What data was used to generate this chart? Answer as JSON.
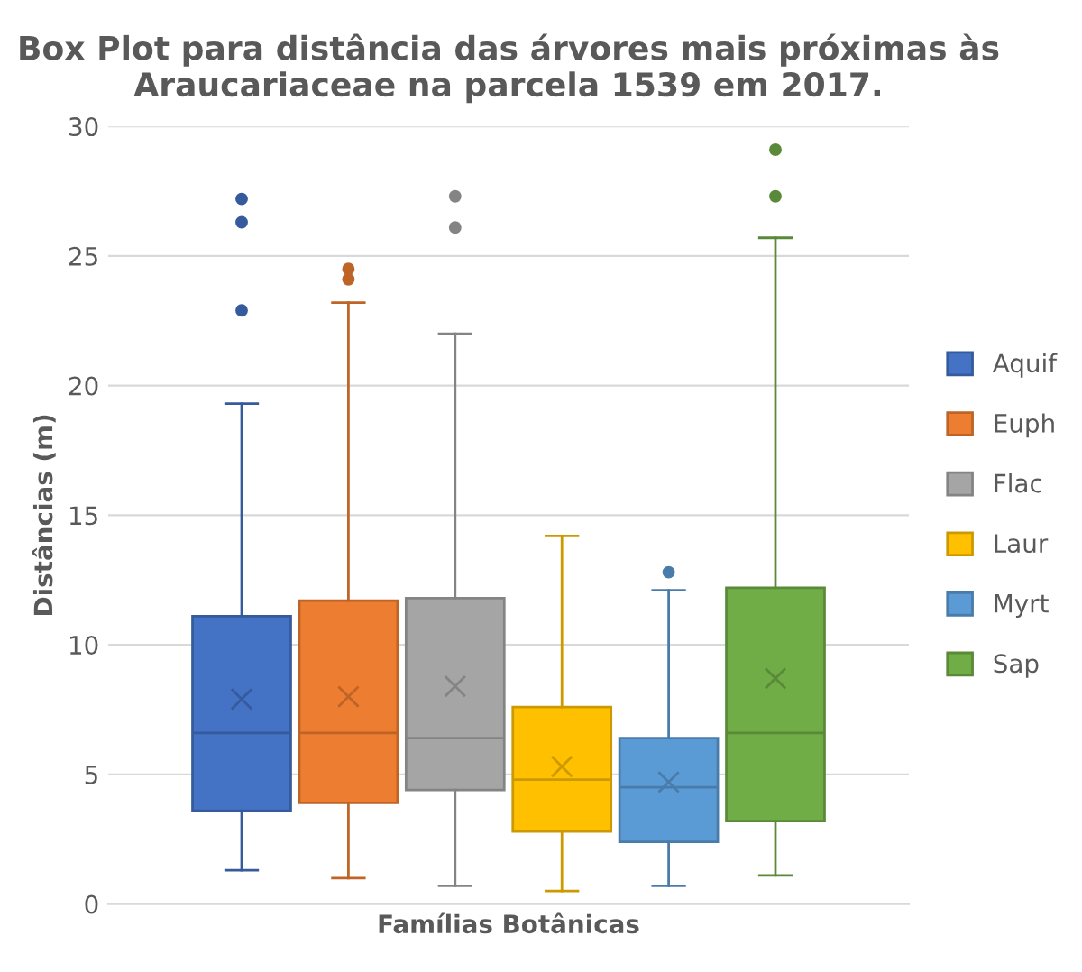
{
  "chart_data": {
    "type": "box",
    "title": "Box Plot para distância das árvores mais próximas às Araucariaceae na parcela 1539 em 2017.",
    "xlabel": "Famílias Botânicas",
    "ylabel": "Distâncias (m)",
    "categories": [
      null
    ],
    "ylim": [
      0,
      30
    ],
    "yticks": [
      0,
      5,
      10,
      15,
      20,
      25,
      30
    ],
    "grid": "y",
    "legend": "right",
    "tick_labels": "y",
    "series": [
      {
        "name": "Aquif",
        "color": "#4472c4",
        "boxes": [
          {
            "low": 1.3,
            "q1": 3.6,
            "median": 6.6,
            "q3": 11.1,
            "high": 19.3,
            "mean": 7.9,
            "outliers": [
              22.9,
              26.3,
              27.2
            ]
          }
        ]
      },
      {
        "name": "Euph",
        "color": "#ed7d31",
        "boxes": [
          {
            "low": 1.0,
            "q1": 3.9,
            "median": 6.6,
            "q3": 11.7,
            "high": 23.2,
            "mean": 8.0,
            "outliers": [
              24.1,
              24.5
            ]
          }
        ]
      },
      {
        "name": "Flac",
        "color": "#a5a5a5",
        "boxes": [
          {
            "low": 0.7,
            "q1": 4.4,
            "median": 6.4,
            "q3": 11.8,
            "high": 22.0,
            "mean": 8.4,
            "outliers": [
              26.1,
              27.3
            ]
          }
        ]
      },
      {
        "name": "Laur",
        "color": "#ffc000",
        "boxes": [
          {
            "low": 0.5,
            "q1": 2.8,
            "median": 4.8,
            "q3": 7.6,
            "high": 14.2,
            "mean": 5.3
          }
        ]
      },
      {
        "name": "Myrt",
        "color": "#5b9bd5",
        "boxes": [
          {
            "low": 0.7,
            "q1": 2.4,
            "median": 4.5,
            "q3": 6.4,
            "high": 12.1,
            "mean": 4.7,
            "outliers": [
              12.8
            ]
          }
        ]
      },
      {
        "name": "Sap",
        "color": "#70ad47",
        "boxes": [
          {
            "low": 1.1,
            "q1": 3.2,
            "median": 6.6,
            "q3": 12.2,
            "high": 25.7,
            "mean": 8.7,
            "outliers": [
              27.3,
              29.1
            ]
          }
        ]
      }
    ]
  }
}
